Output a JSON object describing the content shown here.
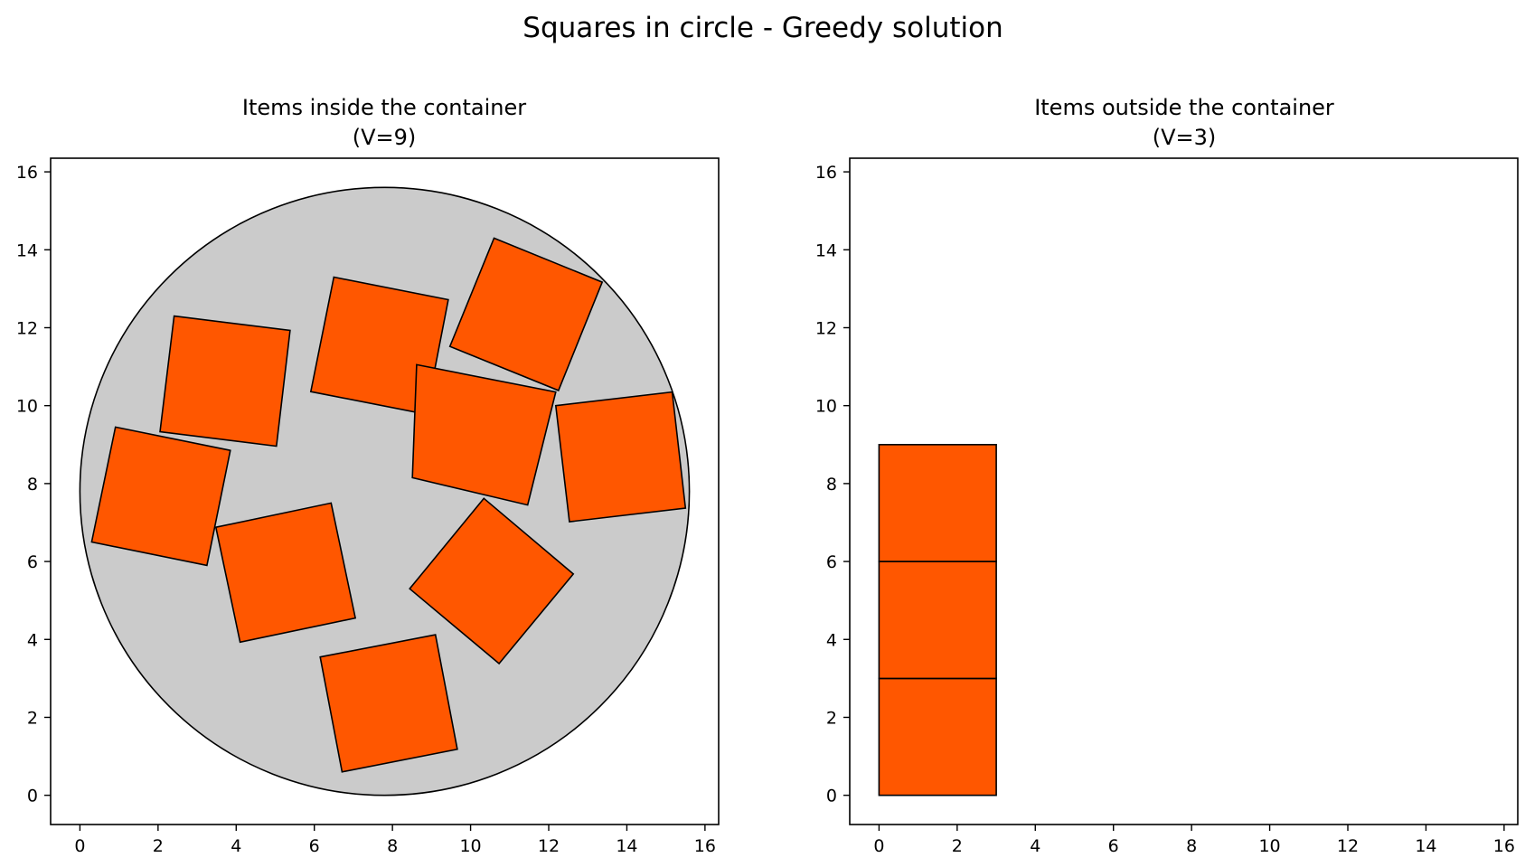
{
  "figure": {
    "title": "Squares in circle - Greedy solution"
  },
  "colors": {
    "item_fill": "#ff5700",
    "container_fill": "#cbcbcb",
    "edge": "#000000"
  },
  "chart_data": [
    {
      "type": "polygon",
      "title_line1": "Items inside the container",
      "title_line2": "(V=9)",
      "xlim": [
        -0.75,
        16.35
      ],
      "ylim": [
        -0.75,
        16.35
      ],
      "xticks": [
        0,
        2,
        4,
        6,
        8,
        10,
        12,
        14,
        16
      ],
      "yticks": [
        0,
        2,
        4,
        6,
        8,
        10,
        12,
        14,
        16
      ],
      "grid": false,
      "container": {
        "shape": "circle",
        "center": [
          7.8,
          7.8
        ],
        "radius": 7.8
      },
      "items": [
        {
          "name": "item-1",
          "vertices": [
            [
              2.41,
              12.3
            ],
            [
              5.38,
              11.93
            ],
            [
              5.03,
              8.96
            ],
            [
              2.05,
              9.33
            ]
          ]
        },
        {
          "name": "item-2",
          "vertices": [
            [
              6.5,
              13.3
            ],
            [
              9.43,
              12.72
            ],
            [
              8.86,
              9.78
            ],
            [
              5.91,
              10.36
            ]
          ]
        },
        {
          "name": "item-3",
          "vertices": [
            [
              10.6,
              14.3
            ],
            [
              13.37,
              13.17
            ],
            [
              12.25,
              10.39
            ],
            [
              9.47,
              11.52
            ]
          ]
        },
        {
          "name": "item-4",
          "vertices": [
            [
              0.91,
              9.45
            ],
            [
              3.85,
              8.85
            ],
            [
              3.25,
              5.9
            ],
            [
              0.3,
              6.5
            ]
          ]
        },
        {
          "name": "item-5",
          "vertices": [
            [
              8.62,
              11.05
            ],
            [
              12.18,
              10.35
            ],
            [
              11.46,
              7.45
            ],
            [
              8.51,
              8.15
            ]
          ]
        },
        {
          "name": "item-6",
          "vertices": [
            [
              12.18,
              10.0
            ],
            [
              15.16,
              10.35
            ],
            [
              15.5,
              7.37
            ],
            [
              12.53,
              7.02
            ]
          ]
        },
        {
          "name": "item-7",
          "vertices": [
            [
              3.48,
              6.88
            ],
            [
              6.43,
              7.5
            ],
            [
              7.05,
              4.55
            ],
            [
              4.1,
              3.93
            ]
          ]
        },
        {
          "name": "item-8",
          "vertices": [
            [
              10.34,
              7.62
            ],
            [
              12.63,
              5.68
            ],
            [
              10.73,
              3.38
            ],
            [
              8.44,
              5.3
            ]
          ]
        },
        {
          "name": "item-9",
          "vertices": [
            [
              6.15,
              3.55
            ],
            [
              9.1,
              4.12
            ],
            [
              9.66,
              1.18
            ],
            [
              6.71,
              0.6
            ]
          ]
        }
      ]
    },
    {
      "type": "polygon",
      "title_line1": "Items outside the container",
      "title_line2": "(V=3)",
      "xlim": [
        -0.75,
        16.35
      ],
      "ylim": [
        -0.75,
        16.35
      ],
      "xticks": [
        0,
        2,
        4,
        6,
        8,
        10,
        12,
        14,
        16
      ],
      "yticks": [
        0,
        2,
        4,
        6,
        8,
        10,
        12,
        14,
        16
      ],
      "grid": false,
      "items": [
        {
          "name": "item-1",
          "vertices": [
            [
              0,
              0
            ],
            [
              3,
              0
            ],
            [
              3,
              3
            ],
            [
              0,
              3
            ]
          ]
        },
        {
          "name": "item-2",
          "vertices": [
            [
              0,
              3
            ],
            [
              3,
              3
            ],
            [
              3,
              6
            ],
            [
              0,
              6
            ]
          ]
        },
        {
          "name": "item-3",
          "vertices": [
            [
              0,
              6
            ],
            [
              3,
              6
            ],
            [
              3,
              9
            ],
            [
              0,
              9
            ]
          ]
        }
      ]
    }
  ]
}
